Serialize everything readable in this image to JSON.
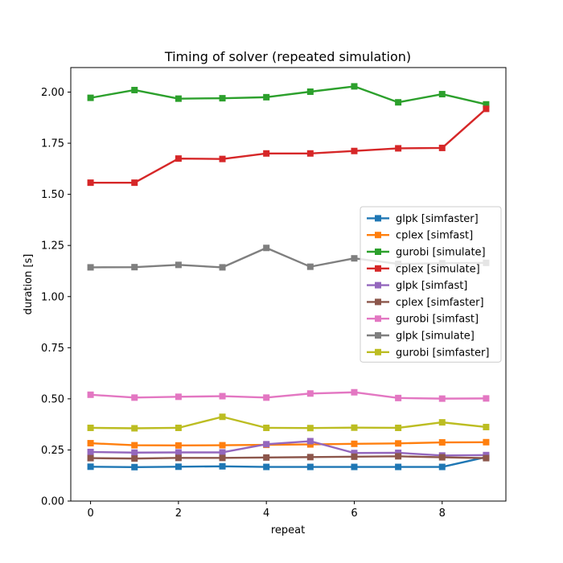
{
  "chart_data": {
    "type": "line",
    "title": "Timing of solver (repeated simulation)",
    "xlabel": "repeat",
    "ylabel": "duration [s]",
    "xlim": [
      -0.45,
      9.45
    ],
    "ylim": [
      0.0,
      2.12
    ],
    "xticks": [
      0,
      2,
      4,
      6,
      8
    ],
    "yticks": [
      0.0,
      0.25,
      0.5,
      0.75,
      1.0,
      1.25,
      1.5,
      1.75,
      2.0
    ],
    "ytick_labels": [
      "0.00",
      "0.25",
      "0.50",
      "0.75",
      "1.00",
      "1.25",
      "1.50",
      "1.75",
      "2.00"
    ],
    "legend_position": "center-right",
    "marker": "square",
    "x": [
      0,
      1,
      2,
      3,
      4,
      5,
      6,
      7,
      8,
      9
    ],
    "series": [
      {
        "name": "glpk [simfaster]",
        "color": "#1f77b4",
        "values": [
          0.168,
          0.166,
          0.168,
          0.17,
          0.167,
          0.167,
          0.167,
          0.167,
          0.167,
          0.215
        ]
      },
      {
        "name": "cplex [simfast]",
        "color": "#ff7f0e",
        "values": [
          0.283,
          0.273,
          0.272,
          0.273,
          0.275,
          0.277,
          0.28,
          0.282,
          0.287,
          0.288
        ]
      },
      {
        "name": "gurobi [simulate]",
        "color": "#2ca02c",
        "values": [
          1.972,
          2.01,
          1.968,
          1.97,
          1.975,
          2.002,
          2.028,
          1.95,
          1.99,
          1.94
        ]
      },
      {
        "name": "cplex [simulate]",
        "color": "#d62728",
        "values": [
          1.557,
          1.557,
          1.675,
          1.673,
          1.7,
          1.7,
          1.712,
          1.725,
          1.727,
          1.918
        ]
      },
      {
        "name": "glpk [simfast]",
        "color": "#9467bd",
        "values": [
          0.24,
          0.237,
          0.238,
          0.238,
          0.278,
          0.293,
          0.235,
          0.236,
          0.223,
          0.225
        ]
      },
      {
        "name": "cplex [simfaster]",
        "color": "#8c564b",
        "values": [
          0.21,
          0.208,
          0.211,
          0.211,
          0.213,
          0.215,
          0.217,
          0.219,
          0.214,
          0.21
        ]
      },
      {
        "name": "gurobi [simfast]",
        "color": "#e377c2",
        "values": [
          0.52,
          0.506,
          0.51,
          0.513,
          0.506,
          0.526,
          0.532,
          0.504,
          0.501,
          0.502
        ]
      },
      {
        "name": "glpk [simulate]",
        "color": "#7f7f7f",
        "values": [
          1.143,
          1.144,
          1.155,
          1.143,
          1.238,
          1.146,
          1.187,
          1.16,
          1.163,
          1.165
        ]
      },
      {
        "name": "gurobi [simfaster]",
        "color": "#bcbd22",
        "values": [
          0.358,
          0.356,
          0.358,
          0.412,
          0.358,
          0.357,
          0.359,
          0.358,
          0.385,
          0.362
        ]
      }
    ]
  }
}
